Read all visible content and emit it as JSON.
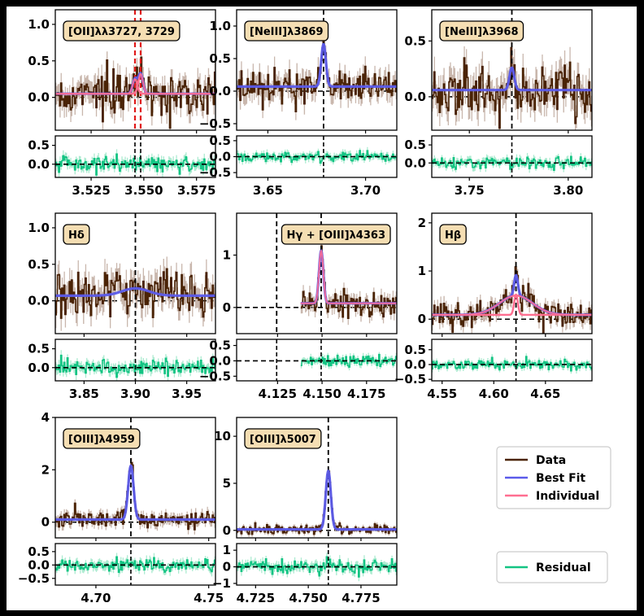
{
  "figure": {
    "background": "#000000",
    "colors": {
      "data": "#4a2306",
      "data_error": "#c9b7ad",
      "best_fit": "#5b5bea",
      "individual": "#ff6f91",
      "residual": "#13c483",
      "residual_band": "#9fe7c9",
      "line_marker": "#000000",
      "zero_line": "#000000",
      "oii_marker": "#e01a1a",
      "title_box_fill": "#f5deb3"
    }
  },
  "legend": {
    "top_entries": [
      {
        "label": "Data",
        "color": "#4a2306"
      },
      {
        "label": "Best Fit",
        "color": "#5b5bea"
      },
      {
        "label": "Individual",
        "color": "#ff6f91"
      }
    ],
    "bottom_entries": [
      {
        "label": "Residual",
        "color": "#13c483"
      }
    ]
  },
  "chart_data": [
    {
      "type": "line",
      "id": "oii",
      "title": "[OII]λλ3727, 3729",
      "xlim": [
        3.508,
        3.584
      ],
      "xticks": [
        3.525,
        3.55,
        3.575
      ],
      "xtick_labels": [
        "3.525",
        "3.550",
        "3.575"
      ],
      "ylim": [
        -0.45,
        1.2
      ],
      "yticks": [
        0,
        0.5,
        1.0
      ],
      "ytick_labels": [
        "0.0",
        "0.5",
        "1.0"
      ],
      "rylim": [
        -0.35,
        0.75
      ],
      "ryticks": [
        0,
        0.5
      ],
      "rytick_labels": [
        "0.0",
        "0.5"
      ],
      "continuum": 0.05,
      "noise": 0.14,
      "resid_noise": 0.12,
      "lines": [
        {
          "center": 3.5458,
          "amp": 0.2,
          "sigma": 0.0011
        },
        {
          "center": 3.5485,
          "amp": 0.27,
          "sigma": 0.0011
        }
      ],
      "markers": [
        {
          "x": 3.5458,
          "style": "red"
        },
        {
          "x": 3.5485,
          "style": "red"
        }
      ],
      "resid_markers": [
        3.5458,
        3.5485
      ],
      "show_individual": true
    },
    {
      "type": "line",
      "id": "neiii3869",
      "title": "[NeIII]λ3869",
      "xlim": [
        3.634,
        3.716
      ],
      "xticks": [
        3.65,
        3.7
      ],
      "xtick_labels": [
        "3.65",
        "3.70"
      ],
      "ylim": [
        -0.6,
        1.25
      ],
      "yticks": [
        -0.5,
        0,
        0.5,
        1.0
      ],
      "ytick_labels": [
        "−0.5",
        "0.0",
        "0.5",
        "1.0"
      ],
      "rylim": [
        -0.65,
        0.65
      ],
      "ryticks": [
        -0.5,
        0,
        0.5
      ],
      "rytick_labels": [
        "−0.5",
        "0.0",
        "0.5"
      ],
      "continuum": 0.07,
      "noise": 0.14,
      "resid_noise": 0.1,
      "lines": [
        {
          "center": 3.6785,
          "amp": 0.65,
          "sigma": 0.0012
        }
      ],
      "markers": [
        {
          "x": 3.6785,
          "style": "black"
        }
      ],
      "resid_markers": [
        3.6785
      ],
      "show_individual": false
    },
    {
      "type": "line",
      "id": "neiii3968",
      "title": "[NeIII]λ3968",
      "xlim": [
        3.731,
        3.812
      ],
      "xticks": [
        3.75,
        3.8
      ],
      "xtick_labels": [
        "3.75",
        "3.80"
      ],
      "ylim": [
        -0.3,
        0.78
      ],
      "yticks": [
        0,
        0.5
      ],
      "ytick_labels": [
        "0.0",
        "0.5"
      ],
      "rylim": [
        -0.4,
        0.75
      ],
      "ryticks": [
        0,
        0.5
      ],
      "rytick_labels": [
        "0.0",
        "0.5"
      ],
      "continuum": 0.06,
      "noise": 0.12,
      "resid_noise": 0.1,
      "lines": [
        {
          "center": 3.7715,
          "amp": 0.2,
          "sigma": 0.0012
        }
      ],
      "markers": [
        {
          "x": 3.7715,
          "style": "black"
        }
      ],
      "resid_markers": [
        3.7715
      ],
      "show_individual": false
    },
    {
      "type": "line",
      "id": "hdelta",
      "title": "Hδ",
      "xlim": [
        3.822,
        3.978
      ],
      "xticks": [
        3.85,
        3.9,
        3.95
      ],
      "xtick_labels": [
        "3.85",
        "3.90",
        "3.95"
      ],
      "ylim": [
        -0.45,
        1.2
      ],
      "yticks": [
        0,
        0.5,
        1.0
      ],
      "ytick_labels": [
        "0.0",
        "0.5",
        "1.0"
      ],
      "rylim": [
        -0.35,
        0.75
      ],
      "ryticks": [
        0,
        0.5
      ],
      "rytick_labels": [
        "0.0",
        "0.5"
      ],
      "continuum": 0.07,
      "noise": 0.16,
      "resid_noise": 0.12,
      "lines": [
        {
          "center": 3.9,
          "amp": 0.1,
          "sigma": 0.013
        }
      ],
      "markers": [
        {
          "x": 3.9,
          "style": "black"
        }
      ],
      "resid_markers": [
        3.9
      ],
      "show_individual": false
    },
    {
      "type": "line",
      "id": "hgamma",
      "title": "Hγ + [OIII]λ4363",
      "xlim": [
        4.102,
        4.192
      ],
      "xticks": [
        4.125,
        4.15,
        4.175
      ],
      "xtick_labels": [
        "4.125",
        "4.150",
        "4.175"
      ],
      "ylim": [
        -0.5,
        1.8
      ],
      "yticks": [
        0,
        1
      ],
      "ytick_labels": [
        "0",
        "1"
      ],
      "rylim": [
        -0.65,
        0.7
      ],
      "ryticks": [
        -0.5,
        0,
        0.5
      ],
      "rytick_labels": [
        "−0.5",
        "0.0",
        "0.5"
      ],
      "continuum": 0.08,
      "noise": 0.12,
      "resid_noise": 0.1,
      "data_start": 4.138,
      "lines": [
        {
          "center": 4.1495,
          "amp": 1.0,
          "sigma": 0.0012
        }
      ],
      "markers": [
        {
          "x": 4.1245,
          "style": "black"
        },
        {
          "x": 4.1495,
          "style": "black"
        }
      ],
      "resid_markers": [
        4.1245,
        4.1495
      ],
      "show_individual": true
    },
    {
      "type": "line",
      "id": "hbeta",
      "title": "Hβ",
      "xlim": [
        4.54,
        4.695
      ],
      "xticks": [
        4.55,
        4.6,
        4.65
      ],
      "xtick_labels": [
        "4.55",
        "4.60",
        "4.65"
      ],
      "ylim": [
        -0.3,
        2.2
      ],
      "yticks": [
        0,
        1,
        2
      ],
      "ytick_labels": [
        "0",
        "1",
        "2"
      ],
      "rylim": [
        -0.55,
        0.85
      ],
      "ryticks": [
        -0.5,
        0,
        0.5
      ],
      "rytick_labels": [
        "−0.5",
        "0.0",
        "0.5"
      ],
      "continuum": 0.09,
      "noise": 0.13,
      "resid_noise": 0.1,
      "lines": [
        {
          "center": 4.6215,
          "amp": 0.4,
          "sigma": 0.016
        },
        {
          "center": 4.6215,
          "amp": 0.42,
          "sigma": 0.0018
        }
      ],
      "markers": [
        {
          "x": 4.6215,
          "style": "black"
        }
      ],
      "resid_markers": [
        4.6215
      ],
      "show_individual": true
    },
    {
      "type": "line",
      "id": "oiii4959",
      "title": "[OIII]λ4959",
      "xlim": [
        4.682,
        4.753
      ],
      "xticks": [
        4.7,
        4.75
      ],
      "xtick_labels": [
        "4.70",
        "4.75"
      ],
      "ylim": [
        -0.6,
        4.0
      ],
      "yticks": [
        0,
        2,
        4
      ],
      "ytick_labels": [
        "0",
        "2",
        "4"
      ],
      "rylim": [
        -0.75,
        0.8
      ],
      "ryticks": [
        -0.5,
        0,
        0.5
      ],
      "rytick_labels": [
        "−0.5",
        "0.0",
        "0.5"
      ],
      "continuum": 0.1,
      "noise": 0.17,
      "resid_noise": 0.15,
      "lines": [
        {
          "center": 4.7155,
          "amp": 2.05,
          "sigma": 0.0012
        }
      ],
      "markers": [
        {
          "x": 4.7155,
          "style": "black"
        }
      ],
      "resid_markers": [
        4.7155
      ],
      "show_individual": false
    },
    {
      "type": "line",
      "id": "oiii5007",
      "title": "[OIII]λ5007",
      "xlim": [
        4.716,
        4.792
      ],
      "xticks": [
        4.725,
        4.75,
        4.775
      ],
      "xtick_labels": [
        "4.725",
        "4.750",
        "4.775"
      ],
      "ylim": [
        -0.8,
        12.0
      ],
      "yticks": [
        0,
        5,
        10
      ],
      "ytick_labels": [
        "0",
        "5",
        "10"
      ],
      "rylim": [
        -1.1,
        1.4
      ],
      "ryticks": [
        -1,
        0,
        1
      ],
      "rytick_labels": [
        "−1",
        "0",
        "1"
      ],
      "continuum": 0.1,
      "noise": 0.25,
      "resid_noise": 0.25,
      "lines": [
        {
          "center": 4.7595,
          "amp": 6.2,
          "sigma": 0.0012
        }
      ],
      "markers": [
        {
          "x": 4.7595,
          "style": "black"
        }
      ],
      "resid_markers": [
        4.7595
      ],
      "show_individual": false
    }
  ]
}
